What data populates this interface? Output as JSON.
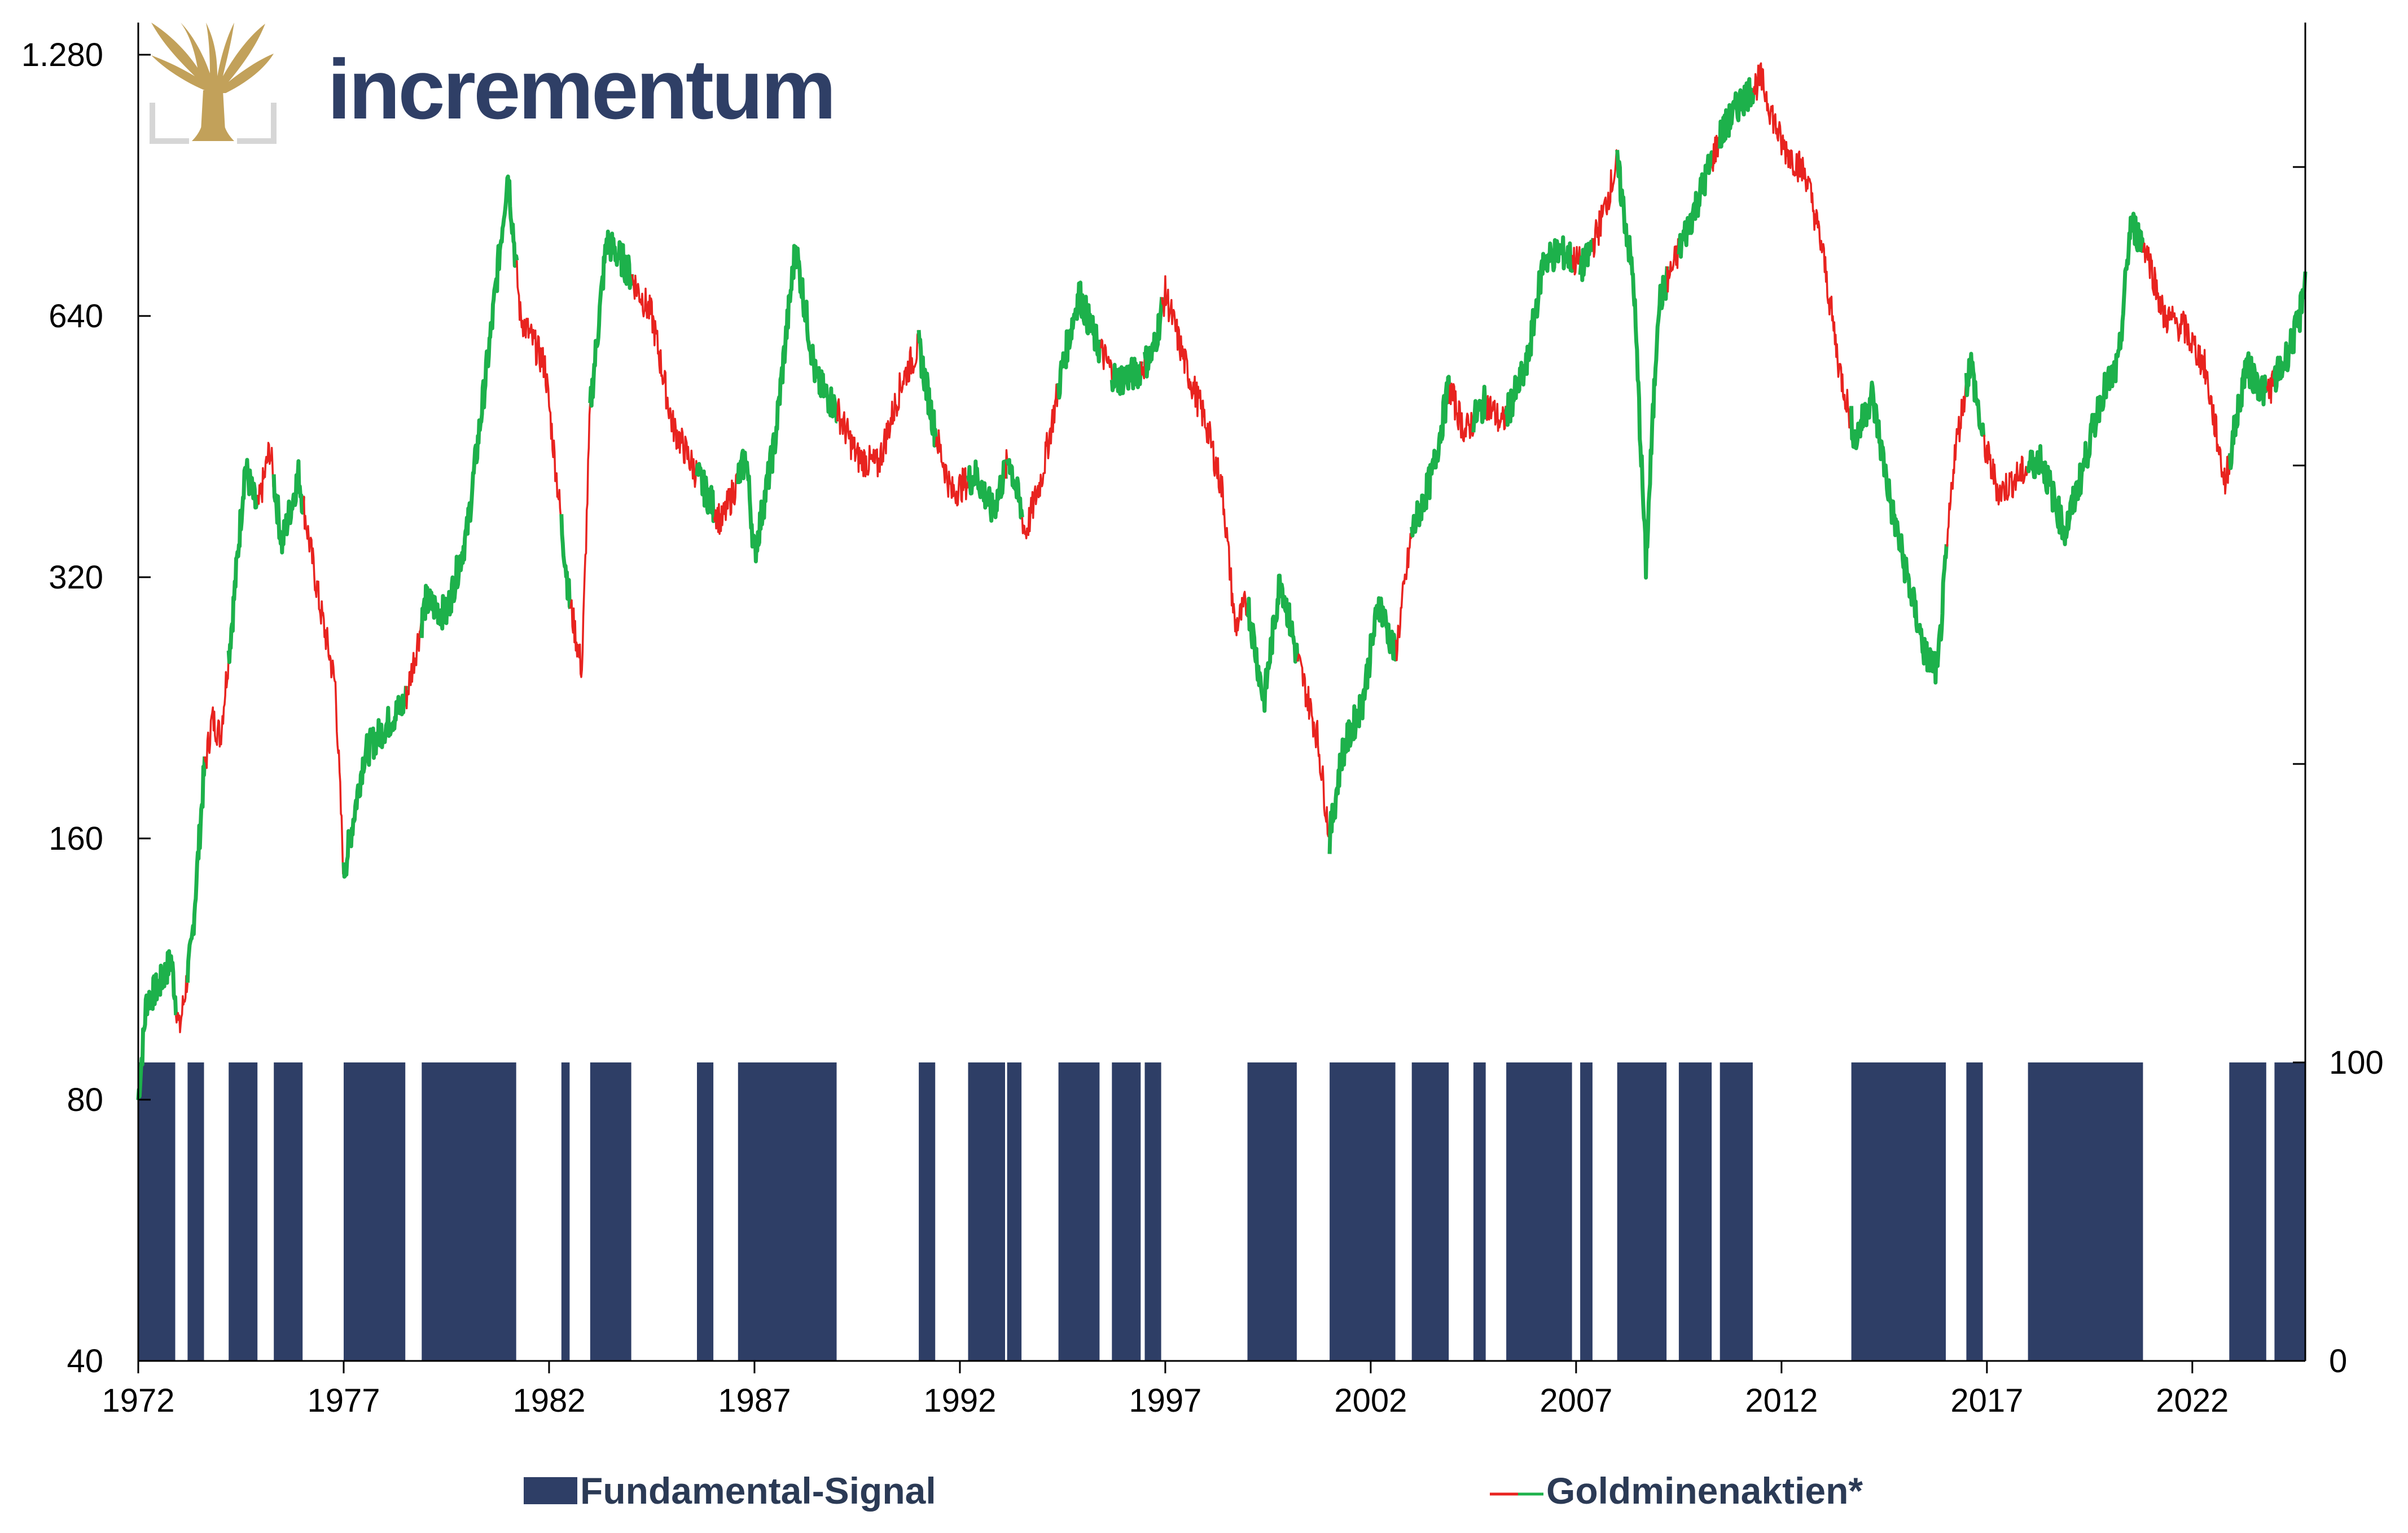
{
  "brand": {
    "name": "incrementum",
    "logo_icon": "tree-icon",
    "logo_color": "#c2a15a",
    "text_color": "#2f3f66"
  },
  "chart_data": {
    "type": "line",
    "title": "",
    "xlabel": "",
    "ylabel": "",
    "x_range": [
      1972,
      2024.75
    ],
    "x_ticks": [
      "1972",
      "1977",
      "1982",
      "1987",
      "1992",
      "1997",
      "2002",
      "2007",
      "2012",
      "2017",
      "2022"
    ],
    "y_left": {
      "scale": "log",
      "ylim": [
        40,
        1280
      ],
      "ticks": [
        {
          "value": 40,
          "label": "40"
        },
        {
          "value": 80,
          "label": "80"
        },
        {
          "value": 160,
          "label": "160"
        },
        {
          "value": 320,
          "label": "320"
        },
        {
          "value": 640,
          "label": "640"
        },
        {
          "value": 1280,
          "label": "1.280"
        }
      ]
    },
    "y_right": {
      "ylim": [
        0,
        440
      ],
      "ticks": [
        {
          "value": 0,
          "label": "0"
        },
        {
          "value": 100,
          "label": "100"
        },
        {
          "value": 200,
          "label": ""
        },
        {
          "value": 300,
          "label": ""
        },
        {
          "value": 400,
          "label": ""
        }
      ]
    },
    "grid": false,
    "legend_position": "bottom",
    "series": [
      {
        "name": "Fundamental-Signal",
        "type": "bar",
        "axis": "right",
        "value": 100,
        "color": "#2e3e66",
        "periods": [
          [
            1972.0,
            1972.9
          ],
          [
            1973.2,
            1973.6
          ],
          [
            1974.2,
            1974.9
          ],
          [
            1975.3,
            1976.0
          ],
          [
            1977.0,
            1978.5
          ],
          [
            1978.9,
            1981.2
          ],
          [
            1982.3,
            1982.5
          ],
          [
            1983.0,
            1984.0
          ],
          [
            1985.6,
            1986.0
          ],
          [
            1986.6,
            1989.0
          ],
          [
            1991.0,
            1991.4
          ],
          [
            1992.2,
            1993.1
          ],
          [
            1993.15,
            1993.5
          ],
          [
            1994.4,
            1995.4
          ],
          [
            1995.7,
            1996.4
          ],
          [
            1996.5,
            1996.9
          ],
          [
            1999.0,
            2000.2
          ],
          [
            2001.0,
            2002.6
          ],
          [
            2003.0,
            2003.9
          ],
          [
            2004.5,
            2004.8
          ],
          [
            2005.3,
            2006.9
          ],
          [
            2007.1,
            2007.4
          ],
          [
            2008.0,
            2009.2
          ],
          [
            2009.5,
            2010.3
          ],
          [
            2010.5,
            2011.3
          ],
          [
            2013.7,
            2016.0
          ],
          [
            2016.5,
            2016.9
          ],
          [
            2018.0,
            2020.8
          ],
          [
            2022.9,
            2023.8
          ],
          [
            2024.0,
            2024.75
          ]
        ]
      },
      {
        "name": "Goldminenaktien*",
        "type": "line",
        "axis": "left",
        "colors": {
          "buy": "#1db14b",
          "sell": "#e8231f"
        },
        "points": [
          [
            1972.0,
            80
          ],
          [
            1972.2,
            104
          ],
          [
            1972.5,
            108
          ],
          [
            1972.8,
            116
          ],
          [
            1973.0,
            96
          ],
          [
            1973.3,
            120
          ],
          [
            1973.6,
            190
          ],
          [
            1973.8,
            220
          ],
          [
            1974.0,
            210
          ],
          [
            1974.3,
            290
          ],
          [
            1974.6,
            430
          ],
          [
            1974.9,
            380
          ],
          [
            1975.2,
            450
          ],
          [
            1975.5,
            350
          ],
          [
            1975.9,
            420
          ],
          [
            1976.4,
            300
          ],
          [
            1976.8,
            240
          ],
          [
            1977.0,
            145
          ],
          [
            1977.5,
            200
          ],
          [
            1978.0,
            215
          ],
          [
            1978.5,
            230
          ],
          [
            1979.0,
            300
          ],
          [
            1979.5,
            290
          ],
          [
            1980.0,
            360
          ],
          [
            1980.6,
            620
          ],
          [
            1981.0,
            940
          ],
          [
            1981.3,
            640
          ],
          [
            1981.9,
            560
          ],
          [
            1982.5,
            300
          ],
          [
            1982.8,
            250
          ],
          [
            1983.0,
            500
          ],
          [
            1983.4,
            780
          ],
          [
            1983.8,
            740
          ],
          [
            1984.5,
            640
          ],
          [
            1985.0,
            480
          ],
          [
            1985.6,
            420
          ],
          [
            1986.2,
            370
          ],
          [
            1986.8,
            440
          ],
          [
            1987.0,
            340
          ],
          [
            1987.5,
            460
          ],
          [
            1988.0,
            770
          ],
          [
            1988.5,
            540
          ],
          [
            1989.0,
            500
          ],
          [
            1989.5,
            440
          ],
          [
            1990.0,
            430
          ],
          [
            1990.6,
            540
          ],
          [
            1991.0,
            590
          ],
          [
            1991.4,
            470
          ],
          [
            1991.8,
            400
          ],
          [
            1992.4,
            420
          ],
          [
            1992.8,
            380
          ],
          [
            1993.2,
            440
          ],
          [
            1993.6,
            360
          ],
          [
            1994.0,
            420
          ],
          [
            1994.5,
            560
          ],
          [
            1994.9,
            680
          ],
          [
            1995.3,
            600
          ],
          [
            1995.8,
            540
          ],
          [
            1996.3,
            550
          ],
          [
            1996.7,
            580
          ],
          [
            1997.0,
            680
          ],
          [
            1997.5,
            560
          ],
          [
            1998.0,
            480
          ],
          [
            1998.4,
            400
          ],
          [
            1998.7,
            280
          ],
          [
            1999.0,
            300
          ],
          [
            1999.4,
            230
          ],
          [
            1999.8,
            320
          ],
          [
            2000.2,
            260
          ],
          [
            2000.7,
            210
          ],
          [
            2001.0,
            160
          ],
          [
            2001.3,
            200
          ],
          [
            2001.8,
            230
          ],
          [
            2002.2,
            300
          ],
          [
            2002.6,
            260
          ],
          [
            2003.0,
            360
          ],
          [
            2003.5,
            420
          ],
          [
            2003.9,
            530
          ],
          [
            2004.3,
            470
          ],
          [
            2004.8,
            510
          ],
          [
            2005.2,
            480
          ],
          [
            2005.8,
            560
          ],
          [
            2006.2,
            740
          ],
          [
            2006.6,
            760
          ],
          [
            2007.2,
            730
          ],
          [
            2007.6,
            820
          ],
          [
            2008.0,
            960
          ],
          [
            2008.4,
            700
          ],
          [
            2008.7,
            330
          ],
          [
            2009.0,
            660
          ],
          [
            2009.5,
            760
          ],
          [
            2010.0,
            880
          ],
          [
            2010.5,
            1030
          ],
          [
            2011.0,
            1130
          ],
          [
            2011.5,
            1200
          ],
          [
            2012.0,
            1010
          ],
          [
            2012.6,
            930
          ],
          [
            2013.0,
            760
          ],
          [
            2013.4,
            560
          ],
          [
            2013.8,
            460
          ],
          [
            2014.2,
            520
          ],
          [
            2014.7,
            380
          ],
          [
            2015.0,
            330
          ],
          [
            2015.5,
            260
          ],
          [
            2015.8,
            250
          ],
          [
            2016.2,
            440
          ],
          [
            2016.6,
            570
          ],
          [
            2016.9,
            460
          ],
          [
            2017.3,
            400
          ],
          [
            2017.8,
            420
          ],
          [
            2018.3,
            440
          ],
          [
            2018.9,
            360
          ],
          [
            2019.3,
            420
          ],
          [
            2019.8,
            520
          ],
          [
            2020.2,
            560
          ],
          [
            2020.5,
            820
          ],
          [
            2020.9,
            760
          ],
          [
            2021.3,
            640
          ],
          [
            2021.8,
            620
          ],
          [
            2022.3,
            560
          ],
          [
            2022.8,
            410
          ],
          [
            2023.3,
            560
          ],
          [
            2023.8,
            520
          ],
          [
            2024.2,
            560
          ],
          [
            2024.6,
            630
          ],
          [
            2024.75,
            720
          ]
        ]
      }
    ]
  },
  "legend": {
    "signal_label": "Fundamental-Signal",
    "stock_label": "Goldminenaktien*"
  }
}
